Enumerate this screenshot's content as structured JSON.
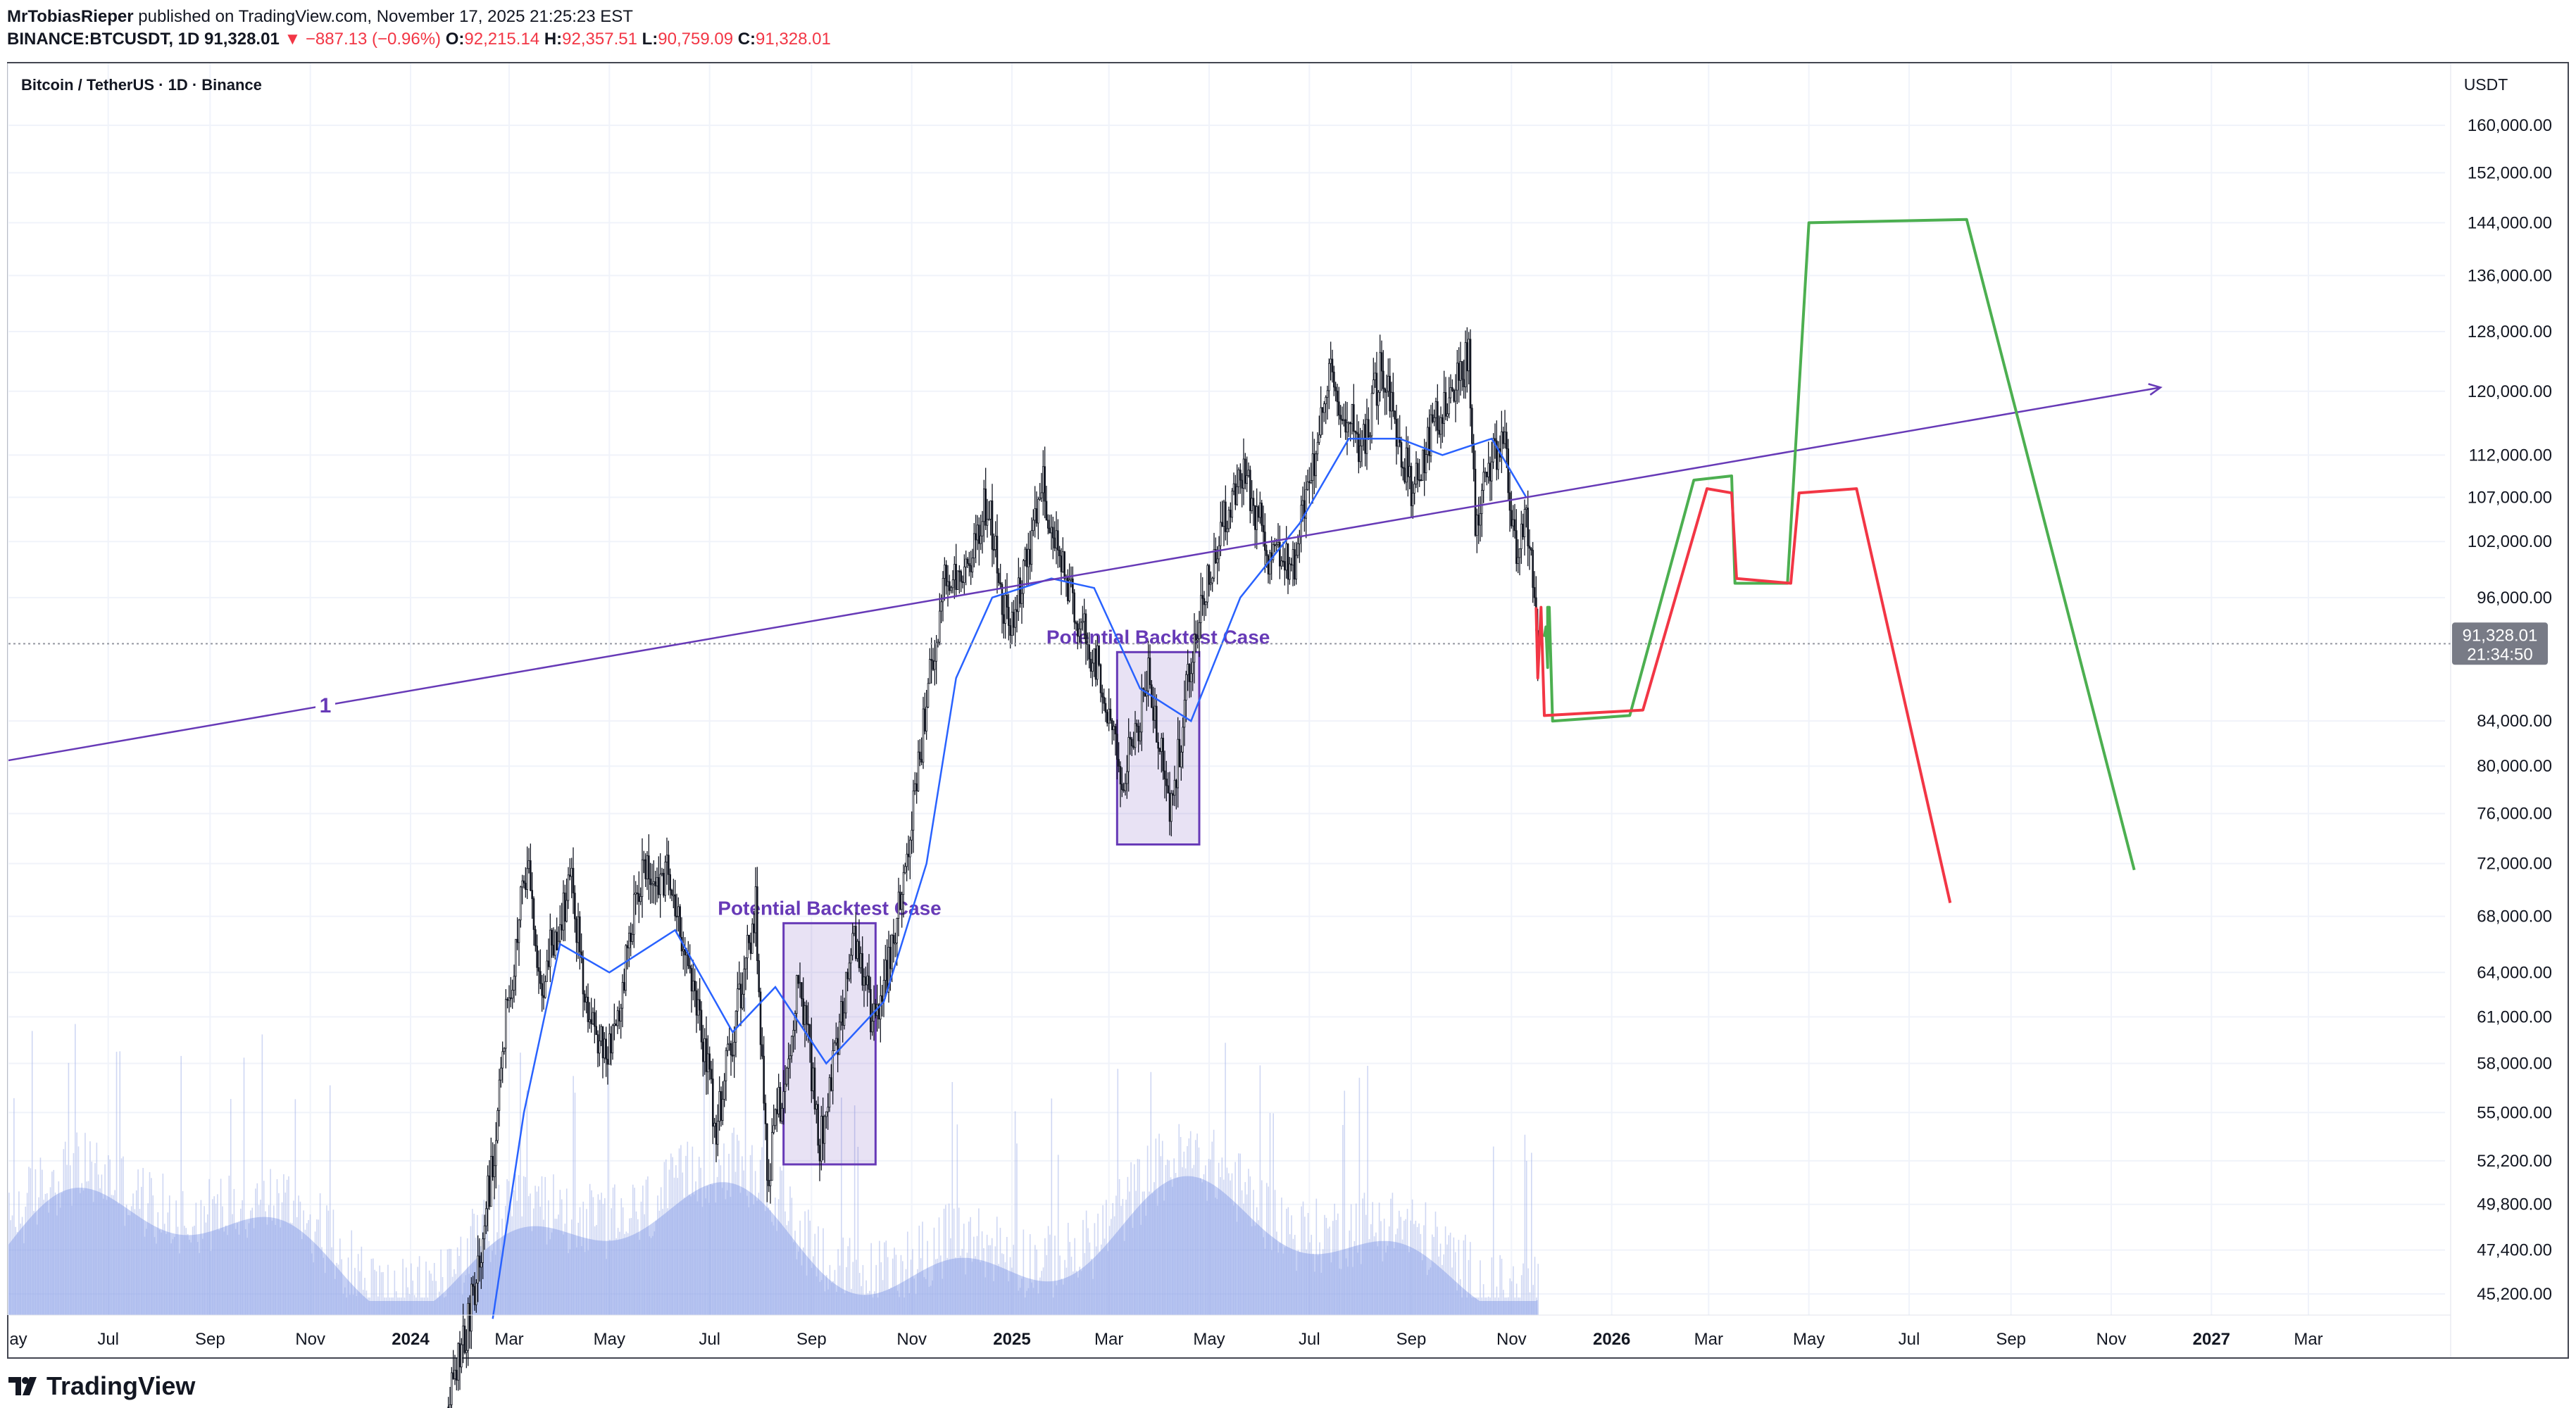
{
  "header": {
    "author": "MrTobiasRieper",
    "published_text": "published on TradingView.com, November 17, 2025 21:25:23 EST",
    "symbol_line": "BINANCE:BTCUSDT, 1D",
    "last_price": "91,328.01",
    "change": "▼ −887.13 (−0.96%)",
    "o_label": "O:",
    "o_value": "92,215.14",
    "h_label": "H:",
    "h_value": "92,357.51",
    "l_label": "L:",
    "l_value": "90,759.09",
    "c_label": "C:",
    "c_value": "91,328.01"
  },
  "chart_title": "Bitcoin / TetherUS · 1D · Binance",
  "currency": "USDT",
  "price_tag": {
    "price": "91,328.01",
    "countdown": "21:34:50"
  },
  "footer": {
    "brand": "TradingView"
  },
  "colors": {
    "accent_purple": "#673ab7",
    "green_path": "#4caf50",
    "red_path": "#f23645",
    "ma_line": "#2962ff",
    "volume": "#a8b7ea"
  },
  "chart_data": {
    "type": "line",
    "scale": "log",
    "ylim": [
      44000,
      165000
    ],
    "x_ticks": [
      {
        "label": "ay",
        "date": "2023-05-01"
      },
      {
        "label": "Jul",
        "date": "2023-07-01"
      },
      {
        "label": "Sep",
        "date": "2023-09-01"
      },
      {
        "label": "Nov",
        "date": "2023-11-01"
      },
      {
        "label": "2024",
        "date": "2024-01-01",
        "bold": true
      },
      {
        "label": "Mar",
        "date": "2024-03-01"
      },
      {
        "label": "May",
        "date": "2024-05-01"
      },
      {
        "label": "Jul",
        "date": "2024-07-01"
      },
      {
        "label": "Sep",
        "date": "2024-09-01"
      },
      {
        "label": "Nov",
        "date": "2024-11-01"
      },
      {
        "label": "2025",
        "date": "2025-01-01",
        "bold": true
      },
      {
        "label": "Mar",
        "date": "2025-03-01"
      },
      {
        "label": "May",
        "date": "2025-05-01"
      },
      {
        "label": "Jul",
        "date": "2025-07-01"
      },
      {
        "label": "Sep",
        "date": "2025-09-01"
      },
      {
        "label": "Nov",
        "date": "2025-11-01"
      },
      {
        "label": "2026",
        "date": "2026-01-01",
        "bold": true
      },
      {
        "label": "Mar",
        "date": "2026-03-01"
      },
      {
        "label": "May",
        "date": "2026-05-01"
      },
      {
        "label": "Jul",
        "date": "2026-07-01"
      },
      {
        "label": "Sep",
        "date": "2026-09-01"
      },
      {
        "label": "Nov",
        "date": "2026-11-01"
      },
      {
        "label": "2027",
        "date": "2027-01-01",
        "bold": true
      },
      {
        "label": "Mar",
        "date": "2027-03-01"
      }
    ],
    "y_ticks": [
      {
        "label": "160,000.00",
        "value": 160000
      },
      {
        "label": "152,000.00",
        "value": 152000
      },
      {
        "label": "144,000.00",
        "value": 144000
      },
      {
        "label": "136,000.00",
        "value": 136000
      },
      {
        "label": "128,000.00",
        "value": 128000
      },
      {
        "label": "120,000.00",
        "value": 120000
      },
      {
        "label": "112,000.00",
        "value": 112000
      },
      {
        "label": "107,000.00",
        "value": 107000
      },
      {
        "label": "102,000.00",
        "value": 102000
      },
      {
        "label": "96,000.00",
        "value": 96000
      },
      {
        "label": "84,000.00",
        "value": 84000
      },
      {
        "label": "80,000.00",
        "value": 80000
      },
      {
        "label": "76,000.00",
        "value": 76000
      },
      {
        "label": "72,000.00",
        "value": 72000
      },
      {
        "label": "68,000.00",
        "value": 68000
      },
      {
        "label": "64,000.00",
        "value": 64000
      },
      {
        "label": "61,000.00",
        "value": 61000
      },
      {
        "label": "58,000.00",
        "value": 58000
      },
      {
        "label": "55,000.00",
        "value": 55000
      },
      {
        "label": "52,200.00",
        "value": 52200
      },
      {
        "label": "49,800.00",
        "value": 49800
      },
      {
        "label": "47,400.00",
        "value": 47400
      },
      {
        "label": "45,200.00",
        "value": 45200
      }
    ],
    "current_price": 91328.01,
    "price_series": [
      {
        "date": "2024-01-24",
        "value": 40000
      },
      {
        "date": "2024-02-08",
        "value": 45000
      },
      {
        "date": "2024-02-20",
        "value": 52000
      },
      {
        "date": "2024-02-29",
        "value": 62000
      },
      {
        "date": "2024-03-13",
        "value": 73000
      },
      {
        "date": "2024-03-20",
        "value": 63000
      },
      {
        "date": "2024-04-08",
        "value": 71000
      },
      {
        "date": "2024-04-17",
        "value": 61000
      },
      {
        "date": "2024-04-30",
        "value": 58000
      },
      {
        "date": "2024-05-20",
        "value": 71000
      },
      {
        "date": "2024-06-05",
        "value": 71000
      },
      {
        "date": "2024-06-25",
        "value": 61000
      },
      {
        "date": "2024-07-05",
        "value": 54000
      },
      {
        "date": "2024-07-29",
        "value": 69000
      },
      {
        "date": "2024-08-05",
        "value": 51000
      },
      {
        "date": "2024-08-25",
        "value": 64000
      },
      {
        "date": "2024-09-06",
        "value": 53000
      },
      {
        "date": "2024-09-27",
        "value": 66000
      },
      {
        "date": "2024-10-10",
        "value": 60000
      },
      {
        "date": "2024-10-29",
        "value": 72000
      },
      {
        "date": "2024-11-12",
        "value": 88000
      },
      {
        "date": "2024-11-22",
        "value": 99000
      },
      {
        "date": "2024-12-05",
        "value": 98000
      },
      {
        "date": "2024-12-17",
        "value": 107000
      },
      {
        "date": "2024-12-30",
        "value": 92000
      },
      {
        "date": "2025-01-20",
        "value": 108000
      },
      {
        "date": "2025-02-03",
        "value": 97000
      },
      {
        "date": "2025-02-25",
        "value": 88000
      },
      {
        "date": "2025-03-10",
        "value": 79000
      },
      {
        "date": "2025-03-25",
        "value": 88000
      },
      {
        "date": "2025-04-08",
        "value": 76000
      },
      {
        "date": "2025-04-22",
        "value": 93000
      },
      {
        "date": "2025-05-10",
        "value": 104000
      },
      {
        "date": "2025-05-22",
        "value": 111000
      },
      {
        "date": "2025-06-05",
        "value": 101000
      },
      {
        "date": "2025-06-22",
        "value": 100000
      },
      {
        "date": "2025-07-14",
        "value": 122000
      },
      {
        "date": "2025-08-02",
        "value": 113000
      },
      {
        "date": "2025-08-14",
        "value": 123000
      },
      {
        "date": "2025-09-01",
        "value": 108000
      },
      {
        "date": "2025-09-18",
        "value": 117000
      },
      {
        "date": "2025-10-06",
        "value": 125000
      },
      {
        "date": "2025-10-10",
        "value": 105000
      },
      {
        "date": "2025-10-27",
        "value": 115000
      },
      {
        "date": "2025-11-04",
        "value": 100000
      },
      {
        "date": "2025-11-10",
        "value": 106000
      },
      {
        "date": "2025-11-17",
        "value": 91328
      }
    ],
    "ma_series": [
      {
        "date": "2024-02-20",
        "value": 44000
      },
      {
        "date": "2024-03-10",
        "value": 55000
      },
      {
        "date": "2024-04-01",
        "value": 66000
      },
      {
        "date": "2024-05-01",
        "value": 64000
      },
      {
        "date": "2024-06-10",
        "value": 67000
      },
      {
        "date": "2024-07-15",
        "value": 60000
      },
      {
        "date": "2024-08-10",
        "value": 63000
      },
      {
        "date": "2024-09-10",
        "value": 58000
      },
      {
        "date": "2024-10-15",
        "value": 62000
      },
      {
        "date": "2024-11-10",
        "value": 72000
      },
      {
        "date": "2024-11-28",
        "value": 88000
      },
      {
        "date": "2024-12-20",
        "value": 96000
      },
      {
        "date": "2025-01-25",
        "value": 98000
      },
      {
        "date": "2025-02-20",
        "value": 97000
      },
      {
        "date": "2025-03-20",
        "value": 87000
      },
      {
        "date": "2025-04-20",
        "value": 84000
      },
      {
        "date": "2025-05-20",
        "value": 96000
      },
      {
        "date": "2025-06-25",
        "value": 104000
      },
      {
        "date": "2025-07-25",
        "value": 114000
      },
      {
        "date": "2025-08-25",
        "value": 114000
      },
      {
        "date": "2025-09-20",
        "value": 112000
      },
      {
        "date": "2025-10-20",
        "value": 114000
      },
      {
        "date": "2025-11-10",
        "value": 107000
      }
    ],
    "volume": {
      "start": "2023-05-01",
      "end": "2025-11-17"
    },
    "trendline": {
      "label": "1",
      "start": {
        "date": "2023-05-01",
        "value": 80500
      },
      "end": {
        "date": "2026-12-01",
        "value": 120500
      }
    },
    "backtest_boxes": [
      {
        "label": "Potential Backtest Case",
        "start": "2024-08-15",
        "end": "2024-10-10",
        "high": 67500,
        "low": 52000
      },
      {
        "label": "Potential Backtest Case",
        "start": "2025-03-06",
        "end": "2025-04-25",
        "high": 90500,
        "low": 73500
      }
    ],
    "projection_green": [
      {
        "date": "2025-11-21",
        "value": 92000
      },
      {
        "date": "2025-11-22",
        "value": 93000
      },
      {
        "date": "2025-11-23",
        "value": 89000
      },
      {
        "date": "2025-11-23",
        "value": 95000
      },
      {
        "date": "2025-11-24",
        "value": 95000
      },
      {
        "date": "2025-11-26",
        "value": 84000
      },
      {
        "date": "2026-01-12",
        "value": 84500
      },
      {
        "date": "2026-02-20",
        "value": 109000
      },
      {
        "date": "2026-03-15",
        "value": 109500
      },
      {
        "date": "2026-03-17",
        "value": 97500
      },
      {
        "date": "2026-04-18",
        "value": 97500
      },
      {
        "date": "2026-05-01",
        "value": 144000
      },
      {
        "date": "2026-08-05",
        "value": 144500
      },
      {
        "date": "2026-11-15",
        "value": 71500
      }
    ],
    "projection_red": [
      {
        "date": "2025-11-16",
        "value": 95000
      },
      {
        "date": "2025-11-17",
        "value": 88000
      },
      {
        "date": "2025-11-19",
        "value": 95000
      },
      {
        "date": "2025-11-21",
        "value": 84500
      },
      {
        "date": "2026-01-20",
        "value": 85000
      },
      {
        "date": "2026-02-28",
        "value": 108000
      },
      {
        "date": "2026-03-15",
        "value": 107500
      },
      {
        "date": "2026-03-18",
        "value": 98000
      },
      {
        "date": "2026-04-20",
        "value": 97500
      },
      {
        "date": "2026-04-25",
        "value": 107500
      },
      {
        "date": "2026-05-30",
        "value": 108000
      },
      {
        "date": "2026-07-26",
        "value": 69000
      }
    ]
  }
}
